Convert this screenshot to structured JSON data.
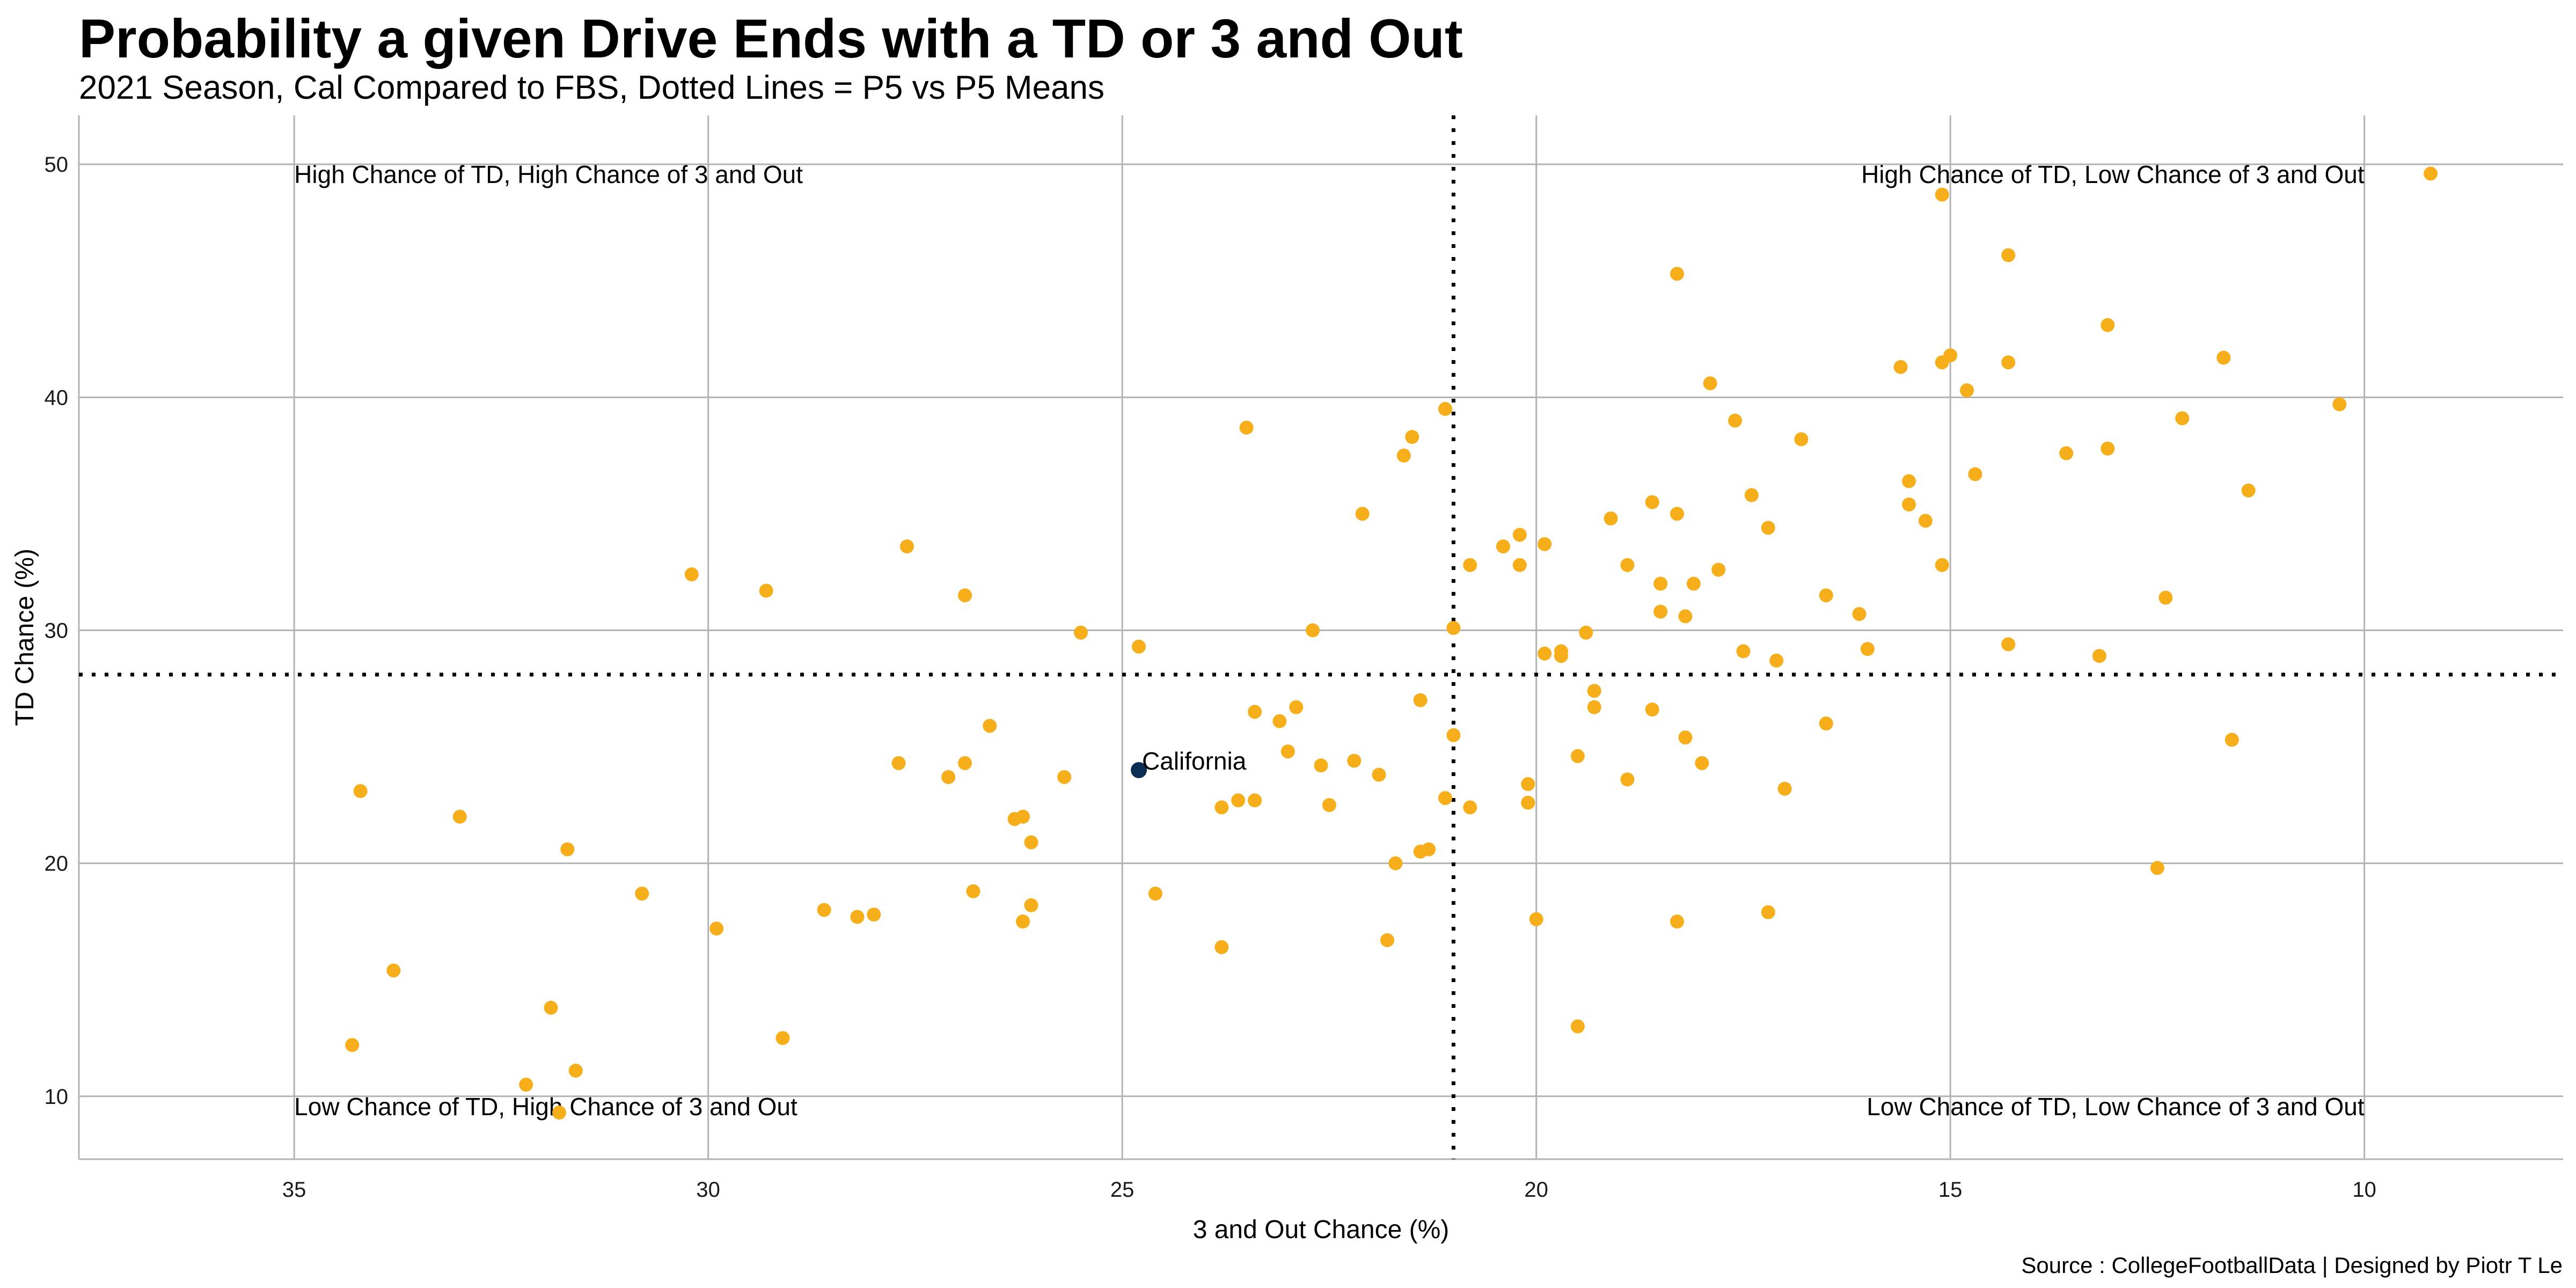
{
  "title": "Probability a given Drive Ends with a TD or 3 and Out",
  "subtitle": "2021 Season, Cal Compared to FBS, Dotted Lines = P5 vs P5 Means",
  "caption": "Source : CollegeFootballData | Designed by Piotr T Le",
  "colors": {
    "teams": "#F6AE1B",
    "highlight": "#0B2D52",
    "grid": "#B3B3B3",
    "refline": "#000000"
  },
  "chart_data": {
    "type": "scatter",
    "xlabel": "3 and Out Chance (%)",
    "ylabel": "TD Chance (%)",
    "x_reversed": true,
    "xlim": [
      37.6,
      7.6
    ],
    "ylim": [
      7.3,
      52.1
    ],
    "x_ticks": [
      35,
      30,
      25,
      20,
      15,
      10
    ],
    "y_ticks": [
      10,
      20,
      30,
      40,
      50
    ],
    "grid": true,
    "ref_lines": {
      "x": 21.0,
      "y": 28.1,
      "style": "dotted"
    },
    "quadrant_labels": [
      {
        "text": "High Chance of TD, High Chance of 3 and Out",
        "position": "top-left"
      },
      {
        "text": "High Chance of TD, Low Chance of 3 and Out",
        "position": "top-right"
      },
      {
        "text": "Low Chance of TD, High Chance of 3 and Out",
        "position": "bottom-left"
      },
      {
        "text": "Low Chance of TD, Low Chance of 3 and Out",
        "position": "bottom-right"
      }
    ],
    "highlight": {
      "label": "California",
      "x": 24.8,
      "y": 24.0
    },
    "points": [
      [
        9.2,
        49.6
      ],
      [
        15.1,
        48.7
      ],
      [
        14.3,
        46.1
      ],
      [
        18.3,
        45.3
      ],
      [
        13.1,
        43.1
      ],
      [
        11.7,
        41.7
      ],
      [
        15.0,
        41.8
      ],
      [
        15.1,
        41.5
      ],
      [
        14.3,
        41.5
      ],
      [
        15.6,
        41.3
      ],
      [
        17.9,
        40.6
      ],
      [
        14.8,
        40.3
      ],
      [
        10.3,
        39.7
      ],
      [
        21.1,
        39.5
      ],
      [
        12.2,
        39.1
      ],
      [
        17.6,
        39.0
      ],
      [
        23.5,
        38.7
      ],
      [
        21.5,
        38.3
      ],
      [
        16.8,
        38.2
      ],
      [
        13.1,
        37.8
      ],
      [
        13.6,
        37.6
      ],
      [
        21.6,
        37.5
      ],
      [
        14.7,
        36.7
      ],
      [
        15.5,
        36.4
      ],
      [
        11.4,
        36.0
      ],
      [
        17.4,
        35.8
      ],
      [
        18.6,
        35.5
      ],
      [
        15.5,
        35.4
      ],
      [
        22.1,
        35.0
      ],
      [
        18.3,
        35.0
      ],
      [
        19.1,
        34.8
      ],
      [
        15.3,
        34.7
      ],
      [
        17.2,
        34.4
      ],
      [
        20.2,
        34.1
      ],
      [
        20.4,
        33.6
      ],
      [
        19.9,
        33.7
      ],
      [
        27.6,
        33.6
      ],
      [
        18.9,
        32.8
      ],
      [
        20.2,
        32.8
      ],
      [
        20.8,
        32.8
      ],
      [
        15.1,
        32.8
      ],
      [
        17.8,
        32.6
      ],
      [
        30.2,
        32.4
      ],
      [
        18.1,
        32.0
      ],
      [
        18.5,
        32.0
      ],
      [
        29.3,
        31.7
      ],
      [
        26.9,
        31.5
      ],
      [
        16.5,
        31.5
      ],
      [
        12.4,
        31.4
      ],
      [
        18.5,
        30.8
      ],
      [
        16.1,
        30.7
      ],
      [
        18.2,
        30.6
      ],
      [
        21.0,
        30.1
      ],
      [
        22.7,
        30.0
      ],
      [
        25.5,
        29.9
      ],
      [
        19.4,
        29.9
      ],
      [
        14.3,
        29.4
      ],
      [
        24.8,
        29.3
      ],
      [
        16.0,
        29.2
      ],
      [
        17.5,
        29.1
      ],
      [
        19.7,
        29.1
      ],
      [
        19.9,
        29.0
      ],
      [
        19.7,
        28.9
      ],
      [
        13.2,
        28.9
      ],
      [
        17.1,
        28.7
      ],
      [
        19.3,
        27.4
      ],
      [
        21.4,
        27.0
      ],
      [
        22.9,
        26.7
      ],
      [
        19.3,
        26.7
      ],
      [
        18.6,
        26.6
      ],
      [
        23.4,
        26.5
      ],
      [
        23.1,
        26.1
      ],
      [
        16.5,
        26.0
      ],
      [
        26.6,
        25.9
      ],
      [
        21.0,
        25.5
      ],
      [
        18.2,
        25.4
      ],
      [
        11.6,
        25.3
      ],
      [
        23.0,
        24.8
      ],
      [
        19.5,
        24.6
      ],
      [
        22.2,
        24.4
      ],
      [
        27.7,
        24.3
      ],
      [
        26.9,
        24.3
      ],
      [
        18.0,
        24.3
      ],
      [
        22.6,
        24.2
      ],
      [
        21.9,
        23.8
      ],
      [
        25.7,
        23.7
      ],
      [
        27.1,
        23.7
      ],
      [
        18.9,
        23.6
      ],
      [
        20.1,
        23.4
      ],
      [
        17.0,
        23.2
      ],
      [
        34.2,
        23.1
      ],
      [
        21.1,
        22.8
      ],
      [
        23.6,
        22.7
      ],
      [
        23.4,
        22.7
      ],
      [
        20.1,
        22.6
      ],
      [
        22.5,
        22.5
      ],
      [
        20.8,
        22.4
      ],
      [
        23.8,
        22.4
      ],
      [
        33.0,
        22.0
      ],
      [
        26.3,
        21.9
      ],
      [
        26.2,
        22.0
      ],
      [
        26.1,
        20.9
      ],
      [
        31.7,
        20.6
      ],
      [
        21.4,
        20.5
      ],
      [
        21.3,
        20.6
      ],
      [
        21.7,
        20.0
      ],
      [
        12.5,
        19.8
      ],
      [
        30.8,
        18.7
      ],
      [
        26.8,
        18.8
      ],
      [
        24.6,
        18.7
      ],
      [
        26.1,
        18.2
      ],
      [
        28.6,
        18.0
      ],
      [
        17.2,
        17.9
      ],
      [
        28.0,
        17.8
      ],
      [
        28.2,
        17.7
      ],
      [
        20.0,
        17.6
      ],
      [
        18.3,
        17.5
      ],
      [
        26.2,
        17.5
      ],
      [
        29.9,
        17.2
      ],
      [
        21.8,
        16.7
      ],
      [
        23.8,
        16.4
      ],
      [
        33.8,
        15.4
      ],
      [
        31.9,
        13.8
      ],
      [
        19.5,
        13.0
      ],
      [
        29.1,
        12.5
      ],
      [
        34.3,
        12.2
      ],
      [
        31.6,
        11.1
      ],
      [
        32.2,
        10.5
      ],
      [
        31.8,
        9.3
      ]
    ]
  }
}
